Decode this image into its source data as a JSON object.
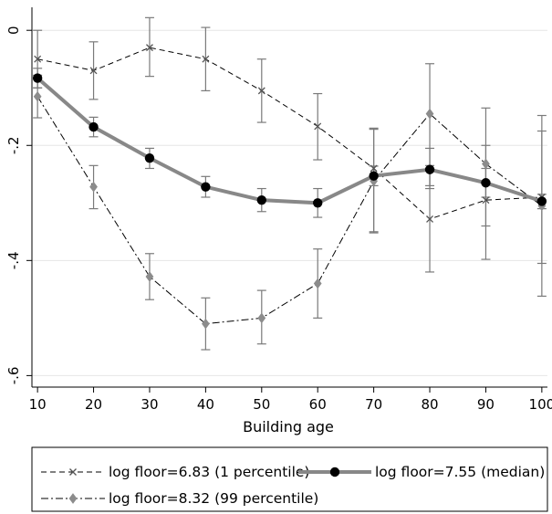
{
  "chart_data": {
    "type": "line",
    "xlabel": "Building age",
    "ylabel": "",
    "x": [
      10,
      20,
      30,
      40,
      50,
      60,
      70,
      80,
      90,
      100
    ],
    "xticks": [
      "10",
      "20",
      "30",
      "40",
      "50",
      "60",
      "70",
      "80",
      "90",
      "100"
    ],
    "yticks": [
      {
        "value": 0,
        "label": "0"
      },
      {
        "value": -0.2,
        "label": "-.2"
      },
      {
        "value": -0.4,
        "label": "-.4"
      },
      {
        "value": -0.6,
        "label": "-.6"
      }
    ],
    "xlim": [
      9,
      101
    ],
    "ylim": [
      -0.62,
      0.04
    ],
    "grid": true,
    "legend_position": "bottom",
    "series": [
      {
        "name": "log floor=6.83 (1 percentile)",
        "line_style": "dashed",
        "marker": "x",
        "color": "#000000",
        "values": [
          -0.05,
          -0.07,
          -0.03,
          -0.05,
          -0.105,
          -0.167,
          -0.24,
          -0.328,
          -0.295,
          -0.29
        ],
        "ci_low": [
          -0.1,
          -0.12,
          -0.08,
          -0.105,
          -0.16,
          -0.225,
          -0.35,
          -0.42,
          -0.398,
          -0.405
        ],
        "ci_high": [
          0.0,
          -0.02,
          0.022,
          0.005,
          -0.05,
          -0.11,
          -0.17,
          -0.235,
          -0.2,
          -0.175
        ]
      },
      {
        "name": "log floor=7.55 (median)",
        "line_style": "solid-thick",
        "marker": "filled-circle",
        "color": "#888888",
        "values": [
          -0.083,
          -0.168,
          -0.222,
          -0.272,
          -0.295,
          -0.3,
          -0.253,
          -0.242,
          -0.265,
          -0.297
        ],
        "ci_low": [
          -0.1,
          -0.185,
          -0.24,
          -0.29,
          -0.315,
          -0.325,
          -0.27,
          -0.275,
          -0.29,
          -0.31
        ],
        "ci_high": [
          -0.066,
          -0.151,
          -0.205,
          -0.254,
          -0.275,
          -0.275,
          -0.236,
          -0.205,
          -0.24,
          -0.285
        ]
      },
      {
        "name": "log floor=8.32 (99 percentile)",
        "line_style": "dash-dot",
        "marker": "diamond",
        "color": "#888888",
        "values": [
          -0.115,
          -0.272,
          -0.428,
          -0.51,
          -0.5,
          -0.44,
          -0.262,
          -0.145,
          -0.232,
          -0.305
        ],
        "ci_low": [
          -0.152,
          -0.31,
          -0.468,
          -0.555,
          -0.545,
          -0.5,
          -0.352,
          -0.27,
          -0.34,
          -0.462
        ],
        "ci_high": [
          -0.078,
          -0.235,
          -0.388,
          -0.465,
          -0.452,
          -0.38,
          -0.172,
          -0.058,
          -0.135,
          -0.148
        ]
      }
    ]
  }
}
